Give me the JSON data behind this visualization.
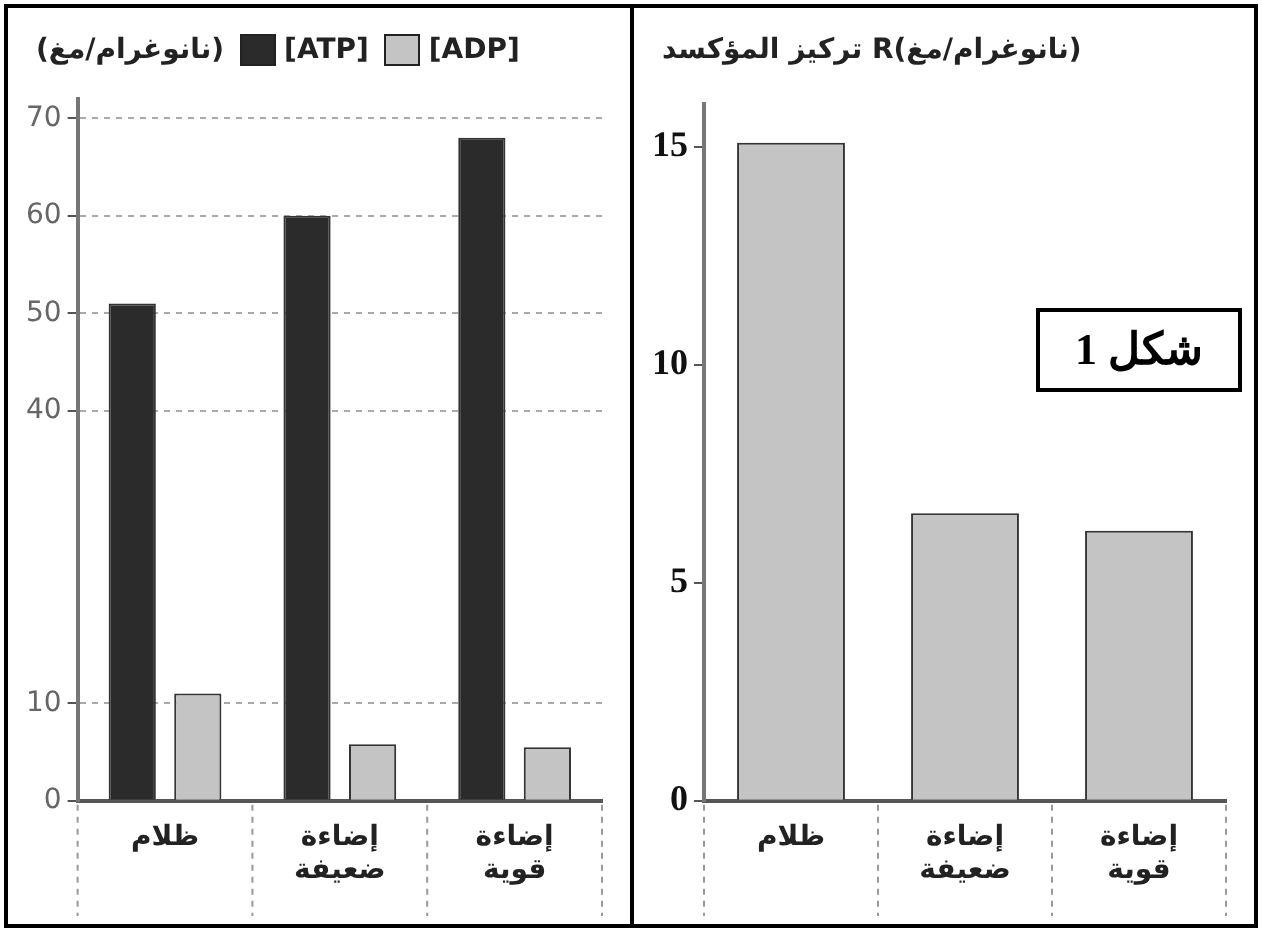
{
  "chart_data": [
    {
      "type": "bar",
      "ylabel": "(نانوغرام/مغ)",
      "categories": [
        "ظلام",
        "إضاءة ضعيفة",
        "إضاءة قوية"
      ],
      "series": [
        {
          "name": "[ATP]",
          "color": "#2b2b2b",
          "values": [
            51,
            60,
            68
          ]
        },
        {
          "name": "[ADP]",
          "color": "#c4c4c4",
          "values": [
            11,
            5.8,
            5.5
          ]
        }
      ],
      "ylim": [
        0,
        72
      ],
      "yticks": [
        0,
        10,
        40,
        50,
        60,
        70
      ],
      "grid": "y",
      "legend": "top right"
    },
    {
      "type": "bar",
      "ylabel": "تركيز المؤكسد R(نانوغرام/مغ)",
      "categories": [
        "ظلام",
        "إضاءة ضعيفة",
        "إضاءة قوية"
      ],
      "values": [
        15.1,
        6.6,
        6.2
      ],
      "color": "#c4c4c4",
      "ylim": [
        0,
        16
      ],
      "yticks": [
        0,
        5,
        10,
        15
      ],
      "grid": false,
      "legend": false,
      "annotations": [
        "شكل 1"
      ]
    }
  ]
}
